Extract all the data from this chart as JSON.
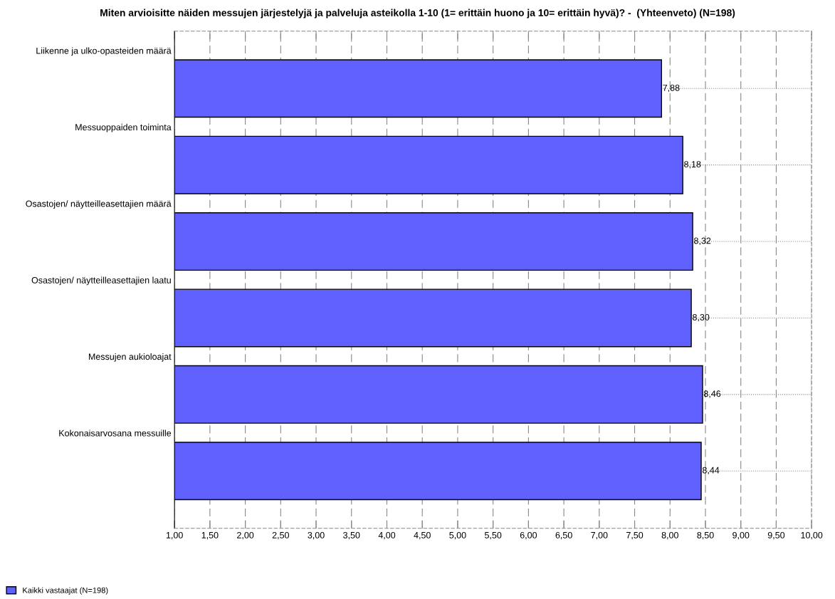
{
  "chart_data": {
    "type": "bar",
    "orientation": "horizontal",
    "title": "Miten arvioisitte näiden messujen järjestelyjä ja palveluja asteikolla 1-10 (1= erittäin huono ja 10= erittäin hyvä)? -  (Yhteenveto) (N=198)",
    "categories": [
      "Liikenne ja ulko-opasteiden määrä",
      "Messuoppaiden toiminta",
      "Osastojen/ näytteilleasettajien määrä",
      "Osastojen/ näytteilleasettajien laatu",
      "Messujen aukioloajat",
      "Kokonaisarvosana messuille"
    ],
    "series": [
      {
        "name": "Kaikki vastaajat (N=198)",
        "color": "#6060ff",
        "values": [
          7.88,
          8.18,
          8.32,
          8.3,
          8.46,
          8.44
        ],
        "value_labels": [
          "7,88",
          "8,18",
          "8,32",
          "8,30",
          "8,46",
          "8,44"
        ]
      }
    ],
    "xlim": [
      1,
      10
    ],
    "xticks": [
      {
        "value": 1,
        "label": "1,00"
      },
      {
        "value": 1.5,
        "label": "1,50"
      },
      {
        "value": 2,
        "label": "2,00"
      },
      {
        "value": 2.5,
        "label": "2,50"
      },
      {
        "value": 3,
        "label": "3,00"
      },
      {
        "value": 3.5,
        "label": "3,50"
      },
      {
        "value": 4,
        "label": "4,00"
      },
      {
        "value": 4.5,
        "label": "4,50"
      },
      {
        "value": 5,
        "label": "5,00"
      },
      {
        "value": 5.5,
        "label": "5,50"
      },
      {
        "value": 6,
        "label": "6,00"
      },
      {
        "value": 6.5,
        "label": "6,50"
      },
      {
        "value": 7,
        "label": "7,00"
      },
      {
        "value": 7.5,
        "label": "7,50"
      },
      {
        "value": 8,
        "label": "8,00"
      },
      {
        "value": 8.5,
        "label": "8,50"
      },
      {
        "value": 9,
        "label": "9,00"
      },
      {
        "value": 9.5,
        "label": "9,50"
      },
      {
        "value": 10,
        "label": "10,00"
      }
    ],
    "grid": true,
    "legend": "bottom left"
  }
}
